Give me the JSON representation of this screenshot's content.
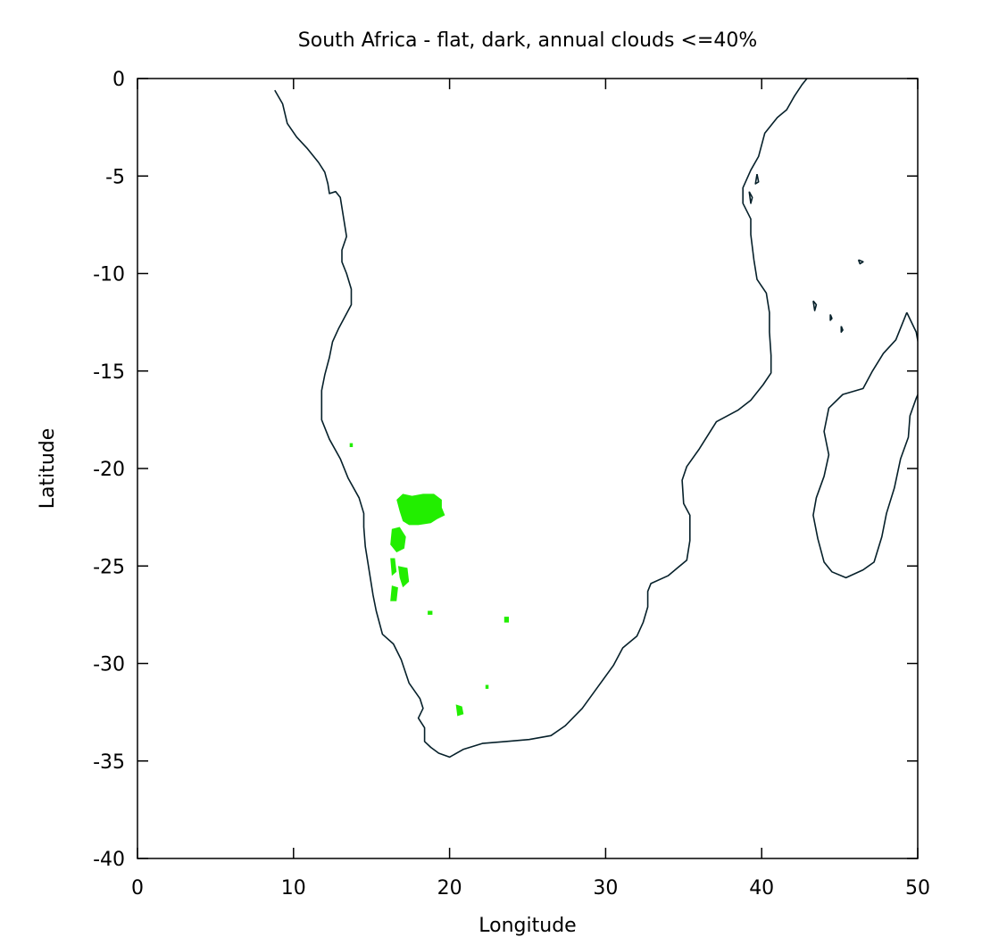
{
  "chart_data": {
    "type": "map",
    "title": "South Africa - flat, dark, annual clouds <=40%",
    "xlabel": "Longitude",
    "ylabel": "Latitude",
    "xlim": [
      0,
      50
    ],
    "ylim": [
      -40,
      0
    ],
    "x_ticks": [
      0,
      10,
      20,
      30,
      40,
      50
    ],
    "y_ticks": [
      0,
      -5,
      -10,
      -15,
      -20,
      -25,
      -30,
      -35,
      -40
    ],
    "grid": false,
    "colors": {
      "region": "#22ee00",
      "coastline": "#06202a",
      "frame": "#000000"
    },
    "coastlines": [
      {
        "name": "africa-coastline",
        "points": [
          [
            8.8,
            -0.6
          ],
          [
            9.3,
            -1.3
          ],
          [
            9.6,
            -2.3
          ],
          [
            10.2,
            -3.0
          ],
          [
            10.9,
            -3.6
          ],
          [
            11.6,
            -4.3
          ],
          [
            12.0,
            -4.8
          ],
          [
            12.2,
            -5.4
          ],
          [
            12.3,
            -5.9
          ],
          [
            12.7,
            -5.8
          ],
          [
            13.0,
            -6.1
          ],
          [
            13.2,
            -7.1
          ],
          [
            13.4,
            -8.1
          ],
          [
            13.1,
            -8.8
          ],
          [
            13.1,
            -9.4
          ],
          [
            13.4,
            -10.0
          ],
          [
            13.7,
            -10.8
          ],
          [
            13.7,
            -11.6
          ],
          [
            13.3,
            -12.2
          ],
          [
            12.9,
            -12.8
          ],
          [
            12.5,
            -13.5
          ],
          [
            12.3,
            -14.3
          ],
          [
            12.0,
            -15.2
          ],
          [
            11.8,
            -16.0
          ],
          [
            11.8,
            -17.0
          ],
          [
            11.8,
            -17.5
          ],
          [
            12.3,
            -18.5
          ],
          [
            13.0,
            -19.5
          ],
          [
            13.5,
            -20.5
          ],
          [
            14.2,
            -21.5
          ],
          [
            14.5,
            -22.3
          ],
          [
            14.5,
            -23.0
          ],
          [
            14.6,
            -24.0
          ],
          [
            14.8,
            -25.0
          ],
          [
            15.1,
            -26.5
          ],
          [
            15.3,
            -27.3
          ],
          [
            15.7,
            -28.5
          ],
          [
            16.4,
            -29.0
          ],
          [
            16.9,
            -29.8
          ],
          [
            17.4,
            -31.0
          ],
          [
            18.1,
            -31.8
          ],
          [
            18.3,
            -32.3
          ],
          [
            18.0,
            -32.8
          ],
          [
            18.4,
            -33.3
          ],
          [
            18.4,
            -34.0
          ],
          [
            18.8,
            -34.3
          ],
          [
            19.3,
            -34.6
          ],
          [
            20.0,
            -34.8
          ],
          [
            20.9,
            -34.4
          ],
          [
            22.1,
            -34.1
          ],
          [
            23.6,
            -34.0
          ],
          [
            25.1,
            -33.9
          ],
          [
            26.5,
            -33.7
          ],
          [
            27.4,
            -33.2
          ],
          [
            28.5,
            -32.3
          ],
          [
            29.5,
            -31.2
          ],
          [
            30.5,
            -30.1
          ],
          [
            31.1,
            -29.2
          ],
          [
            32.0,
            -28.6
          ],
          [
            32.4,
            -27.9
          ],
          [
            32.7,
            -27.1
          ],
          [
            32.7,
            -26.3
          ],
          [
            32.9,
            -25.9
          ],
          [
            34.0,
            -25.5
          ],
          [
            35.2,
            -24.7
          ],
          [
            35.4,
            -23.7
          ],
          [
            35.4,
            -22.4
          ],
          [
            35.0,
            -21.8
          ],
          [
            34.9,
            -20.6
          ],
          [
            35.2,
            -19.9
          ],
          [
            36.0,
            -19.0
          ],
          [
            37.1,
            -17.6
          ],
          [
            38.5,
            -17.0
          ],
          [
            39.3,
            -16.5
          ],
          [
            40.1,
            -15.7
          ],
          [
            40.6,
            -15.1
          ],
          [
            40.6,
            -14.2
          ],
          [
            40.5,
            -13.0
          ],
          [
            40.5,
            -12.0
          ],
          [
            40.3,
            -11.0
          ],
          [
            39.7,
            -10.3
          ],
          [
            39.5,
            -9.3
          ],
          [
            39.3,
            -8.0
          ],
          [
            39.3,
            -7.2
          ],
          [
            38.8,
            -6.4
          ],
          [
            38.8,
            -5.6
          ],
          [
            39.3,
            -4.7
          ],
          [
            39.8,
            -4.0
          ],
          [
            40.2,
            -2.8
          ],
          [
            41.0,
            -2.0
          ],
          [
            41.6,
            -1.6
          ],
          [
            42.1,
            -0.9
          ],
          [
            42.6,
            -0.3
          ],
          [
            42.9,
            0.0
          ]
        ]
      },
      {
        "name": "madagascar-coastline",
        "points": [
          [
            49.3,
            -12.0
          ],
          [
            49.9,
            -13.0
          ],
          [
            50.2,
            -14.3
          ],
          [
            50.4,
            -15.5
          ],
          [
            49.9,
            -16.4
          ],
          [
            49.5,
            -17.3
          ],
          [
            49.4,
            -18.4
          ],
          [
            48.9,
            -19.5
          ],
          [
            48.5,
            -21.0
          ],
          [
            48.0,
            -22.3
          ],
          [
            47.7,
            -23.5
          ],
          [
            47.2,
            -24.8
          ],
          [
            46.5,
            -25.2
          ],
          [
            45.4,
            -25.6
          ],
          [
            44.5,
            -25.3
          ],
          [
            44.0,
            -24.8
          ],
          [
            43.6,
            -23.6
          ],
          [
            43.3,
            -22.4
          ],
          [
            43.5,
            -21.5
          ],
          [
            44.0,
            -20.4
          ],
          [
            44.3,
            -19.3
          ],
          [
            44.0,
            -18.1
          ],
          [
            44.3,
            -16.9
          ],
          [
            45.2,
            -16.2
          ],
          [
            46.5,
            -15.9
          ],
          [
            47.1,
            -15.0
          ],
          [
            47.8,
            -14.1
          ],
          [
            48.6,
            -13.4
          ],
          [
            49.3,
            -12.0
          ]
        ]
      },
      {
        "name": "comoros-mayotte-island",
        "points": [
          [
            43.3,
            -11.4
          ],
          [
            43.5,
            -11.6
          ],
          [
            43.4,
            -11.9
          ],
          [
            43.3,
            -11.4
          ]
        ]
      },
      {
        "name": "comoros-island-2",
        "points": [
          [
            44.4,
            -12.1
          ],
          [
            44.5,
            -12.3
          ],
          [
            44.4,
            -12.4
          ],
          [
            44.4,
            -12.1
          ]
        ]
      },
      {
        "name": "comoros-island-3",
        "points": [
          [
            45.1,
            -12.7
          ],
          [
            45.2,
            -12.9
          ],
          [
            45.1,
            -13.0
          ],
          [
            45.1,
            -12.7
          ]
        ]
      },
      {
        "name": "pemba-island",
        "points": [
          [
            39.7,
            -4.9
          ],
          [
            39.8,
            -5.3
          ],
          [
            39.6,
            -5.4
          ],
          [
            39.7,
            -4.9
          ]
        ]
      },
      {
        "name": "zanzibar-island",
        "points": [
          [
            39.2,
            -5.8
          ],
          [
            39.4,
            -6.1
          ],
          [
            39.3,
            -6.4
          ],
          [
            39.2,
            -5.8
          ]
        ]
      },
      {
        "name": "aldabra-island",
        "points": [
          [
            46.2,
            -9.3
          ],
          [
            46.5,
            -9.4
          ],
          [
            46.3,
            -9.5
          ],
          [
            46.2,
            -9.3
          ]
        ]
      }
    ],
    "regions": [
      {
        "name": "kalahari-region",
        "points": [
          [
            16.6,
            -21.6
          ],
          [
            17.0,
            -21.3
          ],
          [
            17.6,
            -21.4
          ],
          [
            18.3,
            -21.3
          ],
          [
            19.0,
            -21.3
          ],
          [
            19.5,
            -21.6
          ],
          [
            19.5,
            -22.0
          ],
          [
            19.7,
            -22.4
          ],
          [
            19.2,
            -22.6
          ],
          [
            18.8,
            -22.8
          ],
          [
            18.0,
            -22.9
          ],
          [
            17.4,
            -22.9
          ],
          [
            17.0,
            -22.7
          ],
          [
            16.8,
            -22.2
          ],
          [
            16.6,
            -21.6
          ]
        ]
      },
      {
        "name": "namibia-region-1",
        "points": [
          [
            16.3,
            -23.1
          ],
          [
            16.8,
            -23.0
          ],
          [
            17.2,
            -23.5
          ],
          [
            17.1,
            -24.1
          ],
          [
            16.6,
            -24.3
          ],
          [
            16.2,
            -23.9
          ],
          [
            16.3,
            -23.1
          ]
        ]
      },
      {
        "name": "namibia-region-2",
        "points": [
          [
            16.7,
            -25.0
          ],
          [
            17.3,
            -25.1
          ],
          [
            17.4,
            -25.8
          ],
          [
            17.0,
            -26.1
          ],
          [
            16.8,
            -25.6
          ],
          [
            16.7,
            -25.0
          ]
        ]
      },
      {
        "name": "namibia-region-3",
        "points": [
          [
            16.2,
            -24.6
          ],
          [
            16.5,
            -24.6
          ],
          [
            16.6,
            -25.3
          ],
          [
            16.3,
            -25.5
          ],
          [
            16.2,
            -24.6
          ]
        ]
      },
      {
        "name": "namibia-region-4",
        "points": [
          [
            16.3,
            -26.0
          ],
          [
            16.7,
            -26.1
          ],
          [
            16.6,
            -26.8
          ],
          [
            16.2,
            -26.8
          ],
          [
            16.3,
            -26.0
          ]
        ]
      },
      {
        "name": "karoo-region",
        "points": [
          [
            23.5,
            -27.6
          ],
          [
            23.8,
            -27.6
          ],
          [
            23.8,
            -27.9
          ],
          [
            23.5,
            -27.9
          ],
          [
            23.5,
            -27.6
          ]
        ]
      },
      {
        "name": "western-cape-region",
        "points": [
          [
            20.4,
            -32.1
          ],
          [
            20.8,
            -32.2
          ],
          [
            20.9,
            -32.6
          ],
          [
            20.5,
            -32.7
          ],
          [
            20.4,
            -32.1
          ]
        ]
      },
      {
        "name": "eastern-cape-speck",
        "points": [
          [
            22.3,
            -31.1
          ],
          [
            22.5,
            -31.1
          ],
          [
            22.5,
            -31.3
          ],
          [
            22.3,
            -31.3
          ],
          [
            22.3,
            -31.1
          ]
        ]
      },
      {
        "name": "namibia-speck",
        "points": [
          [
            13.6,
            -18.7
          ],
          [
            13.8,
            -18.7
          ],
          [
            13.8,
            -18.9
          ],
          [
            13.6,
            -18.9
          ],
          [
            13.6,
            -18.7
          ]
        ]
      },
      {
        "name": "northern-cape-speck",
        "points": [
          [
            18.6,
            -27.3
          ],
          [
            18.9,
            -27.3
          ],
          [
            18.9,
            -27.5
          ],
          [
            18.6,
            -27.5
          ],
          [
            18.6,
            -27.3
          ]
        ]
      }
    ]
  }
}
